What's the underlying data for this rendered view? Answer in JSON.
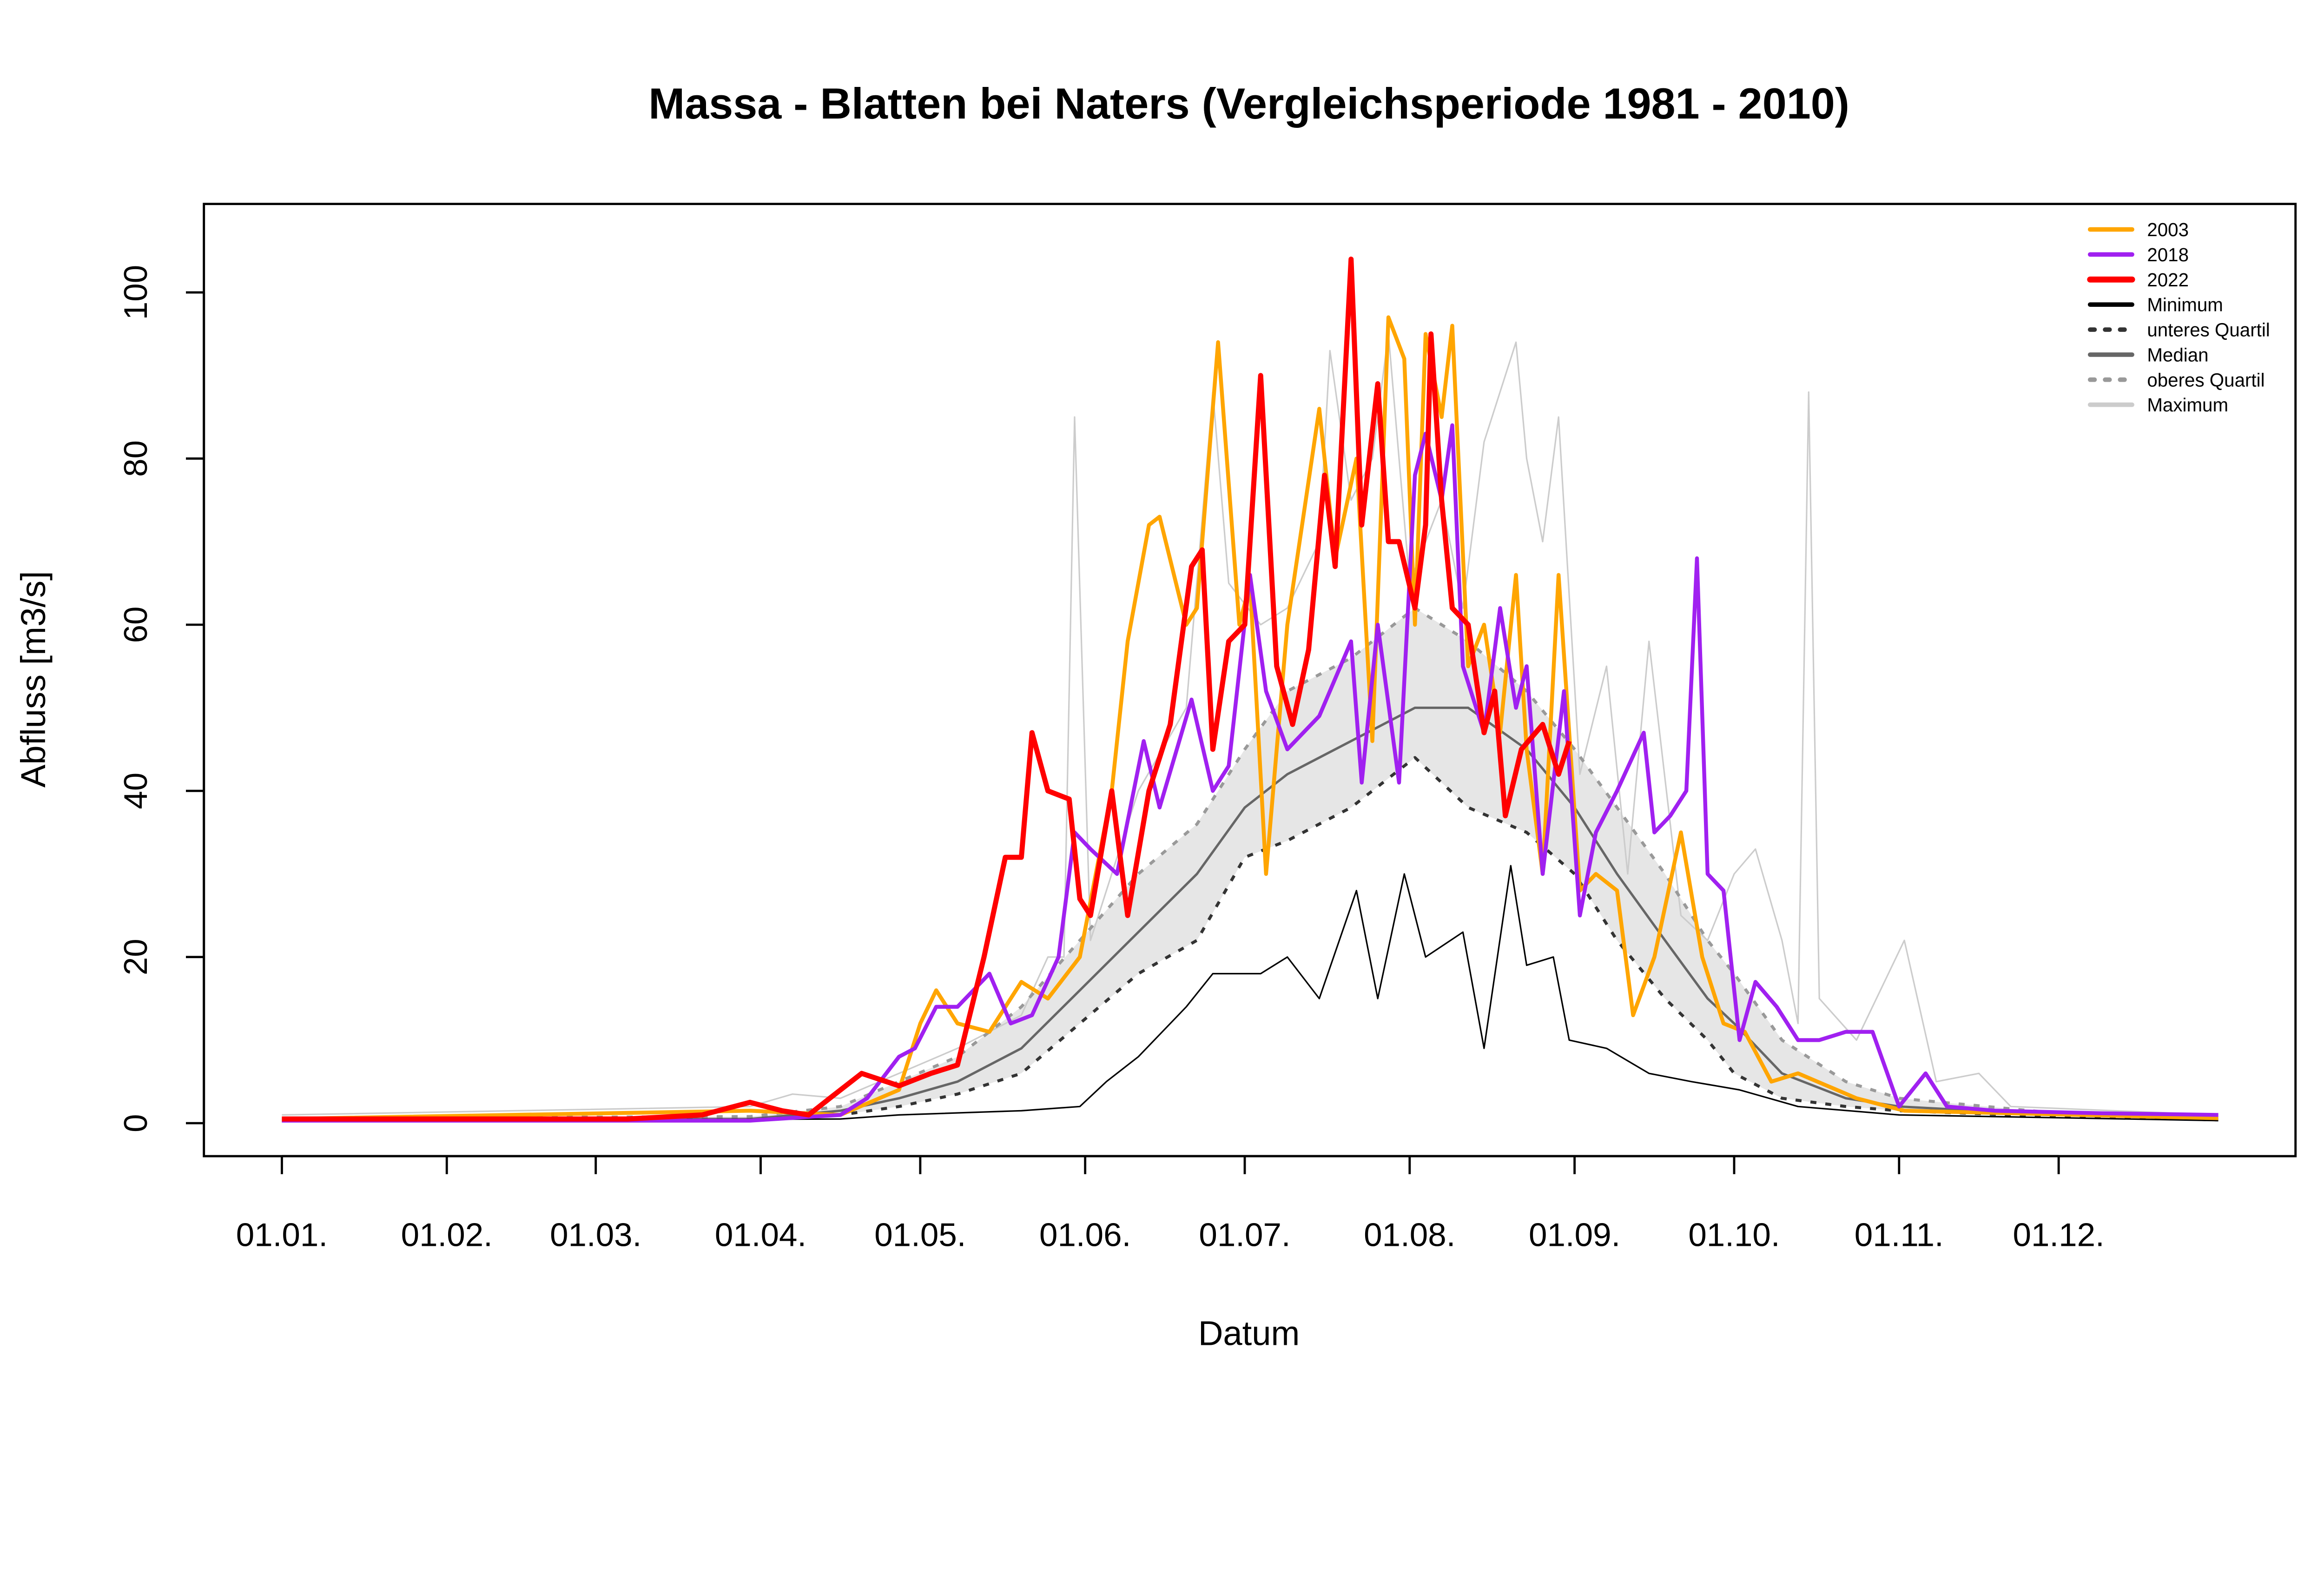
{
  "chart_data": {
    "type": "line",
    "title": "Massa - Blatten bei Naters (Vergleichsperiode 1981 - 2010)",
    "xlabel": "Datum",
    "ylabel": "Abfluss [m3/s]",
    "x_unit": "day of year",
    "xlim": [
      1,
      365
    ],
    "ylim": [
      0,
      100
    ],
    "yticks": [
      0,
      20,
      40,
      60,
      80,
      100
    ],
    "xticks": [
      {
        "day": 1,
        "label": "01.01."
      },
      {
        "day": 32,
        "label": "01.02."
      },
      {
        "day": 60,
        "label": "01.03."
      },
      {
        "day": 91,
        "label": "01.04."
      },
      {
        "day": 121,
        "label": "01.05."
      },
      {
        "day": 152,
        "label": "01.06."
      },
      {
        "day": 182,
        "label": "01.07."
      },
      {
        "day": 213,
        "label": "01.08."
      },
      {
        "day": 244,
        "label": "01.09."
      },
      {
        "day": 274,
        "label": "01.10."
      },
      {
        "day": 305,
        "label": "01.11."
      },
      {
        "day": 335,
        "label": "01.12."
      }
    ],
    "legend_position": "top-right",
    "band_between": [
      "unteres Quartil",
      "oberes Quartil"
    ],
    "band_color": "#e6e6e6",
    "series": [
      {
        "name": "Maximum",
        "color": "#cccccc",
        "dash": "none",
        "width": 1,
        "x": [
          1,
          89,
          97,
          106,
          117,
          128,
          140,
          145,
          148,
          150,
          153,
          162,
          171,
          176,
          179,
          185,
          190,
          196,
          198,
          202,
          206,
          209,
          213,
          219,
          223,
          227,
          233,
          235,
          238,
          241,
          245,
          250,
          254,
          258,
          264,
          269,
          274,
          278,
          283,
          286,
          288,
          290,
          297,
          306,
          312,
          320,
          326,
          365
        ],
        "y": [
          1,
          2,
          3.5,
          3,
          6,
          9,
          13,
          20,
          20,
          85,
          22,
          40,
          50,
          88,
          65,
          60,
          62,
          70,
          93,
          75,
          80,
          95,
          65,
          75,
          62,
          82,
          94,
          80,
          70,
          85,
          42,
          55,
          30,
          58,
          25,
          22,
          30,
          33,
          22,
          12,
          88,
          15,
          10,
          22,
          5,
          6,
          2,
          1
        ]
      },
      {
        "name": "oberes Quartil",
        "color": "#999999",
        "dash": "4 6",
        "width": 2,
        "x": [
          1,
          89,
          106,
          117,
          128,
          140,
          151,
          162,
          173,
          182,
          190,
          202,
          214,
          224,
          235,
          244,
          252,
          261,
          269,
          274,
          283,
          295,
          305,
          335,
          365
        ],
        "y": [
          0.6,
          0.8,
          2,
          5,
          8,
          14,
          22,
          30,
          36,
          45,
          52,
          56,
          62,
          58,
          52,
          45,
          38,
          30,
          22,
          18,
          10,
          5,
          3,
          1.2,
          0.7
        ]
      },
      {
        "name": "Median",
        "color": "#666666",
        "dash": "none",
        "width": 1.6,
        "x": [
          1,
          89,
          106,
          117,
          128,
          140,
          151,
          162,
          173,
          182,
          190,
          202,
          214,
          224,
          235,
          244,
          252,
          261,
          269,
          274,
          283,
          295,
          305,
          335,
          365
        ],
        "y": [
          0.5,
          0.5,
          1.5,
          3,
          5,
          9,
          16,
          23,
          30,
          38,
          42,
          46,
          50,
          50,
          45,
          38,
          30,
          22,
          15,
          12,
          6,
          3,
          2,
          1,
          0.5
        ]
      },
      {
        "name": "unteres Quartil",
        "color": "#333333",
        "dash": "4 6",
        "width": 2,
        "x": [
          1,
          89,
          106,
          117,
          128,
          140,
          151,
          162,
          173,
          182,
          190,
          202,
          214,
          224,
          235,
          244,
          252,
          261,
          269,
          274,
          283,
          295,
          305,
          335,
          365
        ],
        "y": [
          0.3,
          0.4,
          1,
          2,
          3.5,
          6,
          12,
          18,
          22,
          32,
          34,
          38,
          44,
          38,
          35,
          30,
          22,
          15,
          10,
          6,
          3,
          2,
          1.5,
          0.8,
          0.4
        ]
      },
      {
        "name": "Minimum",
        "color": "#000000",
        "dash": "none",
        "width": 1,
        "x": [
          1,
          106,
          117,
          140,
          151,
          156,
          162,
          171,
          176,
          185,
          190,
          196,
          203,
          207,
          212,
          216,
          223,
          227,
          232,
          235,
          240,
          243,
          250,
          258,
          266,
          275,
          286,
          305,
          365
        ],
        "y": [
          0.2,
          0.5,
          1,
          1.5,
          2,
          5,
          8,
          14,
          18,
          18,
          20,
          15,
          28,
          15,
          30,
          20,
          23,
          9,
          31,
          19,
          20,
          10,
          9,
          6,
          5,
          4,
          2,
          1,
          0.3
        ]
      },
      {
        "name": "2003",
        "color": "#ffa500",
        "dash": "none",
        "width": 2.6,
        "x": [
          1,
          89,
          106,
          117,
          121,
          124,
          128,
          134,
          140,
          145,
          151,
          157,
          160,
          164,
          166,
          171,
          173,
          177,
          181,
          183,
          186,
          190,
          196,
          199,
          203,
          206,
          209,
          212,
          214,
          216,
          219,
          221,
          224,
          227,
          230,
          233,
          235,
          238,
          241,
          245,
          248,
          252,
          255,
          259,
          264,
          268,
          272,
          276,
          281,
          286,
          297,
          306,
          365
        ],
        "y": [
          0.5,
          1.5,
          1,
          4,
          12,
          16,
          12,
          11,
          17,
          15,
          20,
          40,
          58,
          72,
          73,
          60,
          62,
          94,
          60,
          65,
          30,
          60,
          86,
          68,
          80,
          46,
          97,
          92,
          60,
          95,
          85,
          96,
          55,
          60,
          47,
          66,
          45,
          30,
          66,
          28,
          30,
          28,
          13,
          20,
          35,
          20,
          12,
          11,
          5,
          6,
          3,
          1.5,
          0.6
        ]
      },
      {
        "name": "2018",
        "color": "#a020f0",
        "dash": "none",
        "width": 2.6,
        "x": [
          1,
          89,
          106,
          111,
          117,
          120,
          124,
          128,
          134,
          138,
          142,
          147,
          150,
          153,
          158,
          163,
          166,
          172,
          176,
          179,
          183,
          186,
          190,
          196,
          202,
          204,
          207,
          211,
          214,
          216,
          219,
          221,
          223,
          227,
          230,
          233,
          235,
          238,
          242,
          245,
          248,
          252,
          257,
          259,
          262,
          265,
          267,
          269,
          272,
          275,
          278,
          282,
          286,
          290,
          295,
          300,
          305,
          310,
          314,
          323,
          343,
          365
        ],
        "y": [
          0.3,
          0.3,
          1,
          3,
          8,
          9,
          14,
          14,
          18,
          12,
          13,
          20,
          35,
          33,
          30,
          46,
          38,
          51,
          40,
          43,
          66,
          52,
          45,
          49,
          58,
          41,
          60,
          41,
          78,
          83,
          75,
          84,
          55,
          47,
          62,
          50,
          55,
          30,
          52,
          25,
          35,
          40,
          47,
          35,
          37,
          40,
          68,
          30,
          28,
          10,
          17,
          14,
          10,
          10,
          11,
          11,
          2,
          6,
          2,
          1.5,
          1.2,
          1
        ]
      },
      {
        "name": "2022",
        "color": "#ff0000",
        "dash": "none",
        "width": 3.4,
        "x": [
          1,
          66,
          80,
          89,
          95,
          100,
          104,
          110,
          117,
          123,
          128,
          133,
          137,
          140,
          142,
          145,
          149,
          151,
          153,
          157,
          160,
          164,
          168,
          172,
          174,
          176,
          179,
          182,
          185,
          188,
          191,
          194,
          197,
          199,
          202,
          204,
          207,
          209,
          211,
          214,
          216,
          217,
          219,
          221,
          224,
          227,
          229,
          231,
          234,
          238,
          241,
          243
        ],
        "y": [
          0.5,
          0.5,
          1,
          2.5,
          1.5,
          1,
          3,
          6,
          4.5,
          6,
          7,
          20,
          32,
          32,
          47,
          40,
          39,
          27,
          25,
          40,
          25,
          40,
          48,
          67,
          69,
          45,
          58,
          60,
          90,
          55,
          48,
          57,
          78,
          67,
          104,
          72,
          89,
          70,
          70,
          62,
          72,
          95,
          75,
          62,
          60,
          47,
          52,
          37,
          45,
          48,
          42,
          46
        ]
      }
    ]
  },
  "legend": {
    "items": [
      {
        "label": "2003",
        "color": "#ffa500",
        "dash": "none",
        "width": 3
      },
      {
        "label": "2018",
        "color": "#a020f0",
        "dash": "none",
        "width": 3
      },
      {
        "label": "2022",
        "color": "#ff0000",
        "dash": "none",
        "width": 4
      },
      {
        "label": "Minimum",
        "color": "#000000",
        "dash": "none",
        "width": 3
      },
      {
        "label": "unteres Quartil",
        "color": "#333333",
        "dash": "3 7",
        "width": 3
      },
      {
        "label": "Median",
        "color": "#666666",
        "dash": "none",
        "width": 3
      },
      {
        "label": "oberes Quartil",
        "color": "#999999",
        "dash": "3 7",
        "width": 3
      },
      {
        "label": "Maximum",
        "color": "#cccccc",
        "dash": "none",
        "width": 3
      }
    ]
  }
}
